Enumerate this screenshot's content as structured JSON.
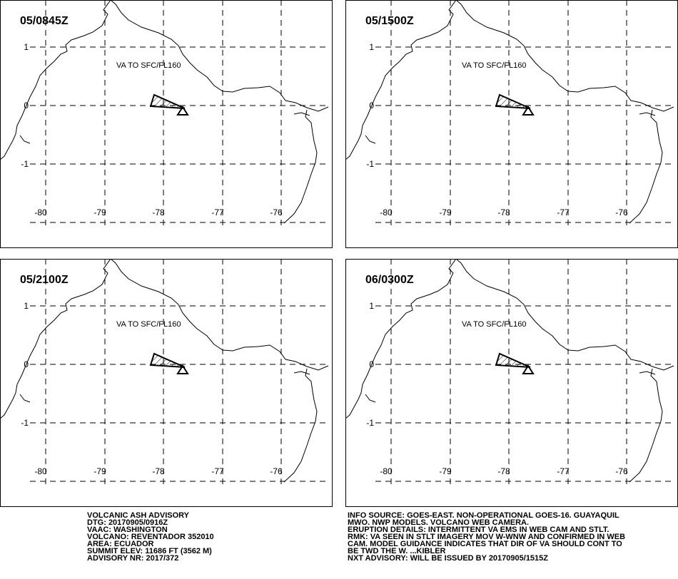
{
  "panels": [
    {
      "time": "05/0845Z",
      "ash_label": "VA TO SFC/FL160"
    },
    {
      "time": "05/1500Z",
      "ash_label": "VA TO SFC/FL160"
    },
    {
      "time": "05/2100Z",
      "ash_label": "VA TO SFC/FL160"
    },
    {
      "time": "06/0300Z",
      "ash_label": "VA TO SFC/FL160"
    }
  ],
  "lat_labels": [
    "1",
    "0",
    "-1"
  ],
  "lon_labels": [
    "-80",
    "-79",
    "-78",
    "-77",
    "-76"
  ],
  "advisory": {
    "left": [
      "VOLCANIC ASH ADVISORY",
      "DTG: 20170905/0916Z",
      "VAAC: WASHINGTON",
      "VOLCANO: REVENTADOR 352010",
      "AREA: ECUADOR",
      "SUMMIT ELEV: 11686 FT (3562 M)",
      "ADVISORY NR: 2017/372"
    ],
    "right": [
      "INFO SOURCE: GOES-EAST. NON-OPERATIONAL GOES-16. GUAYAQUIL",
      "MWO. NWP MODELS. VOLCANO WEB CAMERA.",
      "ERUPTION DETAILS: INTERMITTENT VA EMS IN WEB CAM AND STLT.",
      "RMK: VA SEEN IN STLT IMAGERY MOV W-WNW AND CONFIRMED IN WEB",
      "CAM. MODEL GUIDANCE INDICATES THAT DIR OF VA SHOULD CONT TO",
      "BE TWD THE W. ...KIBLER",
      "NXT ADVISORY: WILL BE ISSUED BY 20170905/1515Z"
    ]
  }
}
